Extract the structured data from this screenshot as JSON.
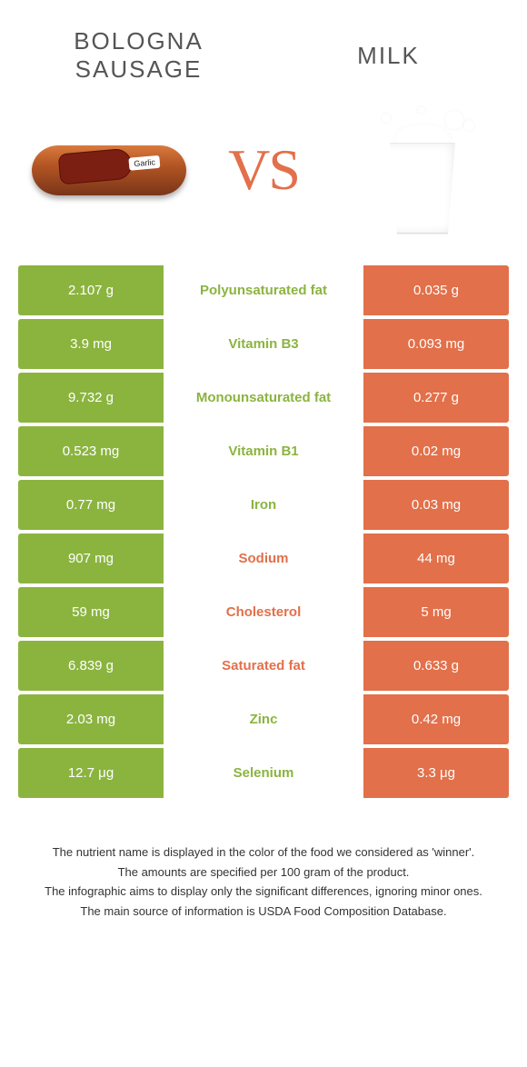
{
  "colors": {
    "green": "#8bb43f",
    "orange": "#e2704a",
    "rowGap": "#ffffff"
  },
  "header": {
    "left_title": "BOLOGNA SAUSAGE",
    "right_title": "MILK",
    "vs": "VS"
  },
  "table": {
    "rows": [
      {
        "left": "2.107 g",
        "label": "Polyunsaturated fat",
        "right": "0.035 g",
        "winner": "left"
      },
      {
        "left": "3.9 mg",
        "label": "Vitamin B3",
        "right": "0.093 mg",
        "winner": "left"
      },
      {
        "left": "9.732 g",
        "label": "Monounsaturated fat",
        "right": "0.277 g",
        "winner": "left"
      },
      {
        "left": "0.523 mg",
        "label": "Vitamin B1",
        "right": "0.02 mg",
        "winner": "left"
      },
      {
        "left": "0.77 mg",
        "label": "Iron",
        "right": "0.03 mg",
        "winner": "left"
      },
      {
        "left": "907 mg",
        "label": "Sodium",
        "right": "44 mg",
        "winner": "right"
      },
      {
        "left": "59 mg",
        "label": "Cholesterol",
        "right": "5 mg",
        "winner": "right"
      },
      {
        "left": "6.839 g",
        "label": "Saturated fat",
        "right": "0.633 g",
        "winner": "right"
      },
      {
        "left": "2.03 mg",
        "label": "Zinc",
        "right": "0.42 mg",
        "winner": "left"
      },
      {
        "left": "12.7 μg",
        "label": "Selenium",
        "right": "3.3 μg",
        "winner": "left"
      }
    ]
  },
  "footer": {
    "line1": "The nutrient name is displayed in the color of the food we considered as 'winner'.",
    "line2": "The amounts are specified per 100 gram of the product.",
    "line3": "The infographic aims to display only the significant differences, ignoring minor ones.",
    "line4": "The main source of information is USDA Food Composition Database."
  }
}
